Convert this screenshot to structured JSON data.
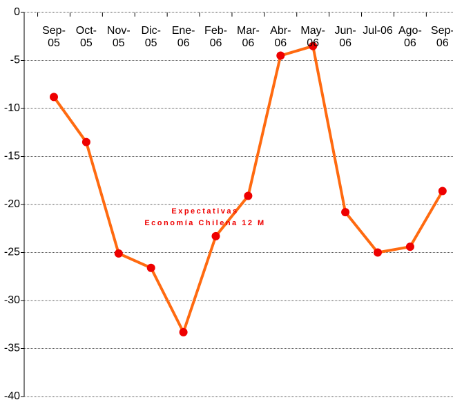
{
  "chart_data": {
    "type": "line",
    "annotation": [
      "Expectativas",
      "Economía Chilena 12 M"
    ],
    "categories": [
      "Sep-05",
      "Oct-05",
      "Nov-05",
      "Dic-05",
      "Ene-06",
      "Feb-06",
      "Mar-06",
      "Abr-06",
      "May-06",
      "Jun-06",
      "Jul-06",
      "Ago-06",
      "Sep-06"
    ],
    "values": [
      -8.8,
      -13.5,
      -25.1,
      -26.6,
      -33.3,
      -23.3,
      -19.1,
      -4.5,
      -3.5,
      -20.8,
      -25.0,
      -24.4,
      -18.6
    ],
    "color": "#ff6a10",
    "marker_color": "#ee0000",
    "annotation_color": "#ee0000",
    "ylim": [
      -40,
      0
    ],
    "yticks": [
      -40,
      -35,
      -30,
      -25,
      -20,
      -15,
      -10,
      -5,
      0
    ],
    "grid": true
  }
}
